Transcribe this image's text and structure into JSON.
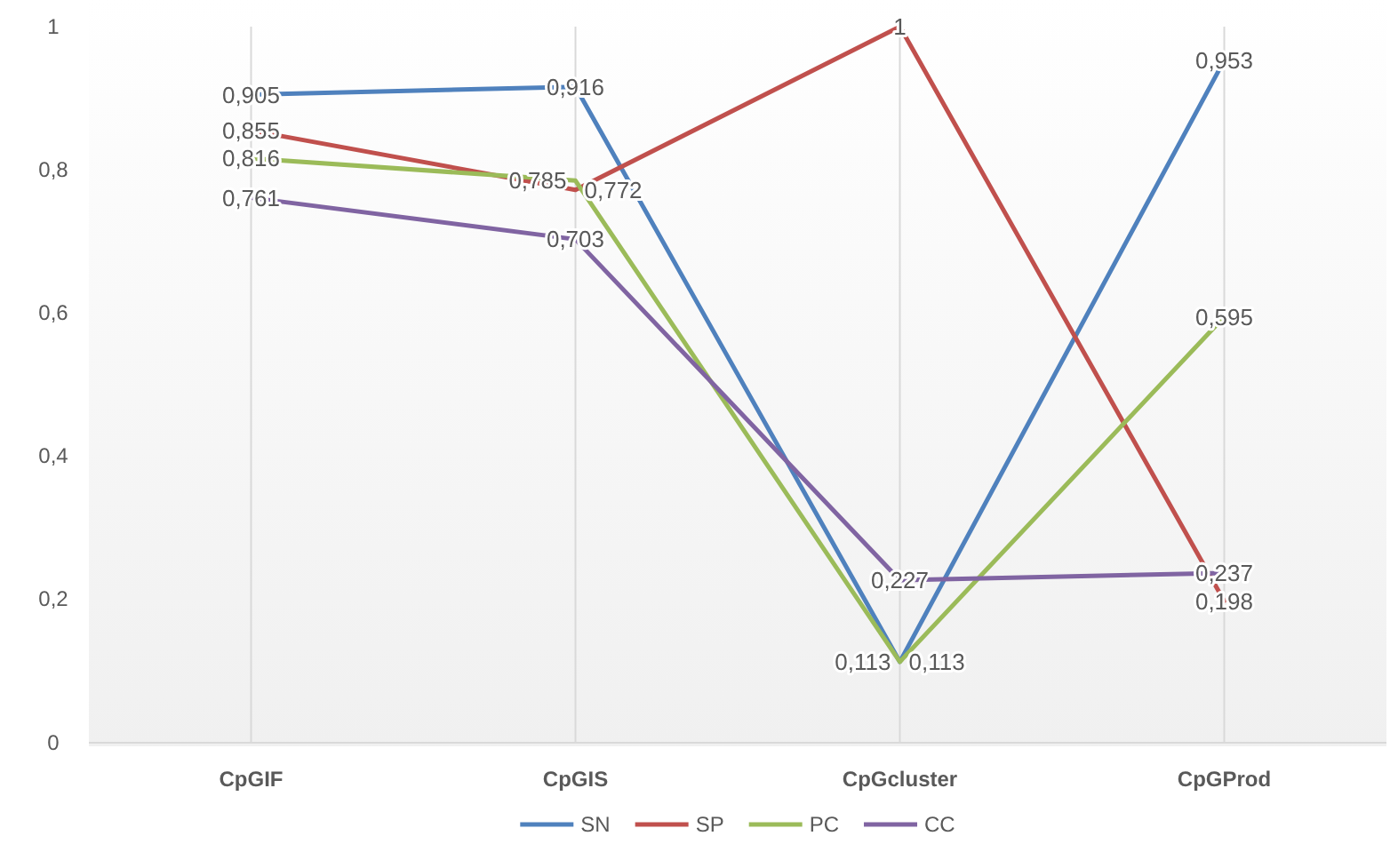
{
  "chart_data": {
    "type": "line",
    "categories": [
      "CpGIF",
      "CpGIS",
      "CpGcluster",
      "CpGProd"
    ],
    "series": [
      {
        "name": "SN",
        "color": "#4f81bd",
        "values": [
          0.905,
          0.916,
          0.113,
          0.953
        ],
        "value_labels": [
          "0,905",
          "0,916",
          "0,113",
          "0,953"
        ]
      },
      {
        "name": "SP",
        "color": "#c0504d",
        "values": [
          0.855,
          0.772,
          1,
          0.198
        ],
        "value_labels": [
          "0,855",
          "0,772",
          "1",
          "0,198"
        ]
      },
      {
        "name": "PC",
        "color": "#9bbb59",
        "values": [
          0.816,
          0.785,
          0.113,
          0.595
        ],
        "value_labels": [
          "0,816",
          "0,785",
          "0,113",
          "0,595"
        ]
      },
      {
        "name": "CC",
        "color": "#8064a2",
        "values": [
          0.761,
          0.703,
          0.227,
          0.237
        ],
        "value_labels": [
          "0,761",
          "0,703",
          "0,227",
          "0,237"
        ]
      }
    ],
    "ylim": [
      0,
      1
    ],
    "yticks": [
      0,
      {
        "value": 0.2,
        "label": "0,2"
      },
      {
        "value": 0.4,
        "label": "0,4"
      },
      {
        "value": 0.6,
        "label": "0,6"
      },
      {
        "value": 0.8,
        "label": "0,8"
      },
      1
    ],
    "grid": "x",
    "legend": "bottom"
  }
}
